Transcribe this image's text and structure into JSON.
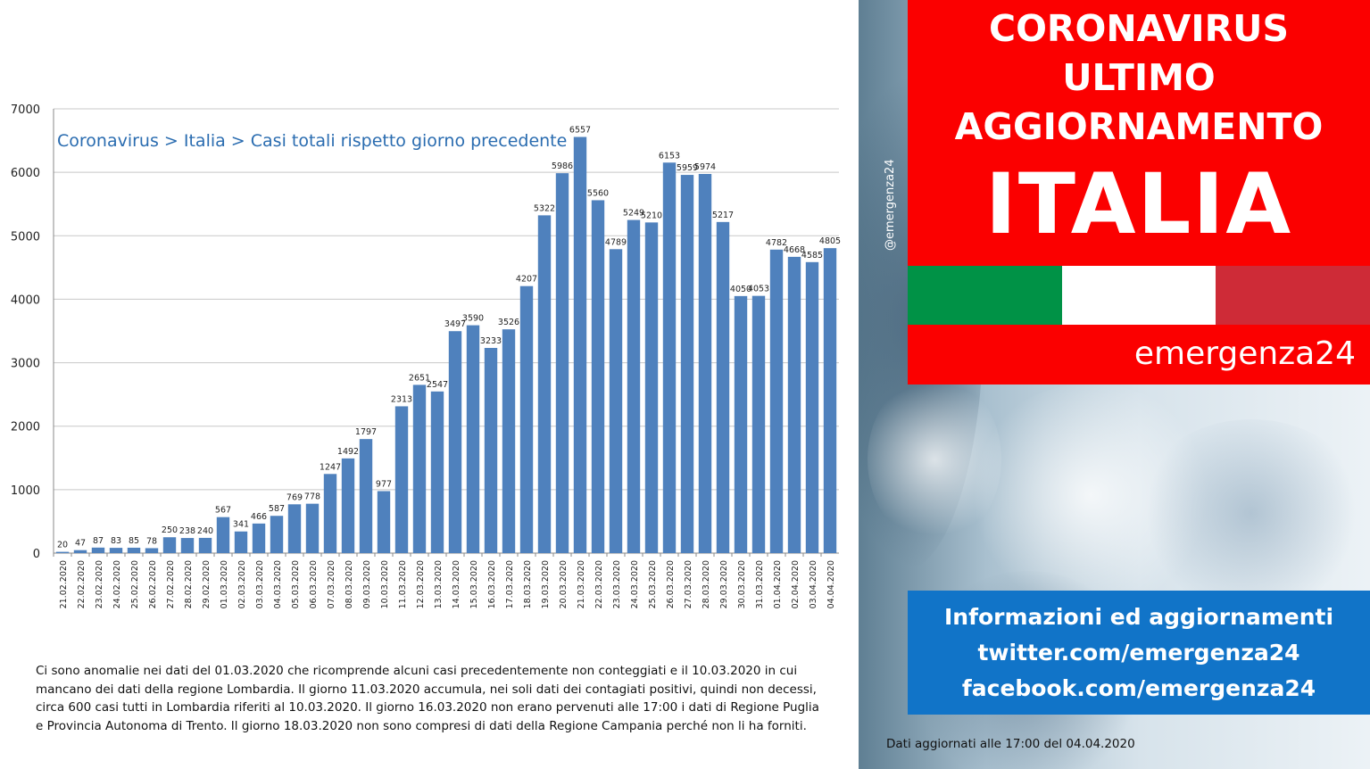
{
  "colors": {
    "bar": "#4f81bd",
    "title": "#2a6cb0",
    "grid": "#c8c8c8",
    "banner_red": "#fb0000",
    "flag_green": "#009246",
    "flag_white": "#ffffff",
    "flag_red": "#ce2b37",
    "info_blue": "#1174c8"
  },
  "chart_data": {
    "type": "bar",
    "title": "Coronavirus > Italia > Casi totali rispetto giorno precedente",
    "xlabel": "",
    "ylabel": "",
    "ylim": [
      0,
      7000
    ],
    "yticks": [
      "0",
      "1000",
      "2000",
      "3000",
      "4000",
      "5000",
      "6000",
      "7000"
    ],
    "grid": true,
    "legend": "none",
    "categories": [
      "21.02.2020",
      "22.02.2020",
      "23.02.2020",
      "24.02.2020",
      "25.02.2020",
      "26.02.2020",
      "27.02.2020",
      "28.02.2020",
      "29.02.2020",
      "01.03.2020",
      "02.03.2020",
      "03.03.2020",
      "04.03.2020",
      "05.03.2020",
      "06.03.2020",
      "07.03.2020",
      "08.03.2020",
      "09.03.2020",
      "10.03.2020",
      "11.03.2020",
      "12.03.2020",
      "13.03.2020",
      "14.03.2020",
      "15.03.2020",
      "16.03.2020",
      "17.03.2020",
      "18.03.2020",
      "19.03.2020",
      "20.03.2020",
      "21.03.2020",
      "22.03.2020",
      "23.03.2020",
      "24.03.2020",
      "25.03.2020",
      "26.03.2020",
      "27.03.2020",
      "28.03.2020",
      "29.03.2020",
      "30.03.2020",
      "31.03.2020",
      "01.04.2020",
      "02.04.2020",
      "03.04.2020",
      "04.04.2020"
    ],
    "values": [
      20,
      47,
      87,
      83,
      85,
      78,
      250,
      238,
      240,
      567,
      341,
      466,
      587,
      769,
      778,
      1247,
      1492,
      1797,
      977,
      2313,
      2651,
      2547,
      3497,
      3590,
      3233,
      3526,
      4207,
      5322,
      5986,
      6557,
      5560,
      4789,
      5249,
      5210,
      6153,
      5959,
      5974,
      5217,
      4050,
      4053,
      4782,
      4668,
      4585,
      4805
    ]
  },
  "note": "Ci sono anomalie nei dati del 01.03.2020 che ricomprende alcuni casi precedentemente  non conteggiati e il 10.03.2020 in cui mancano dei dati della regione Lombardia. Il giorno 11.03.2020  accumula, nei soli dati dei contagiati positivi, quindi non decessi, circa 600 casi tutti in Lombardia riferiti al  10.03.2020. Il giorno 16.03.2020 non erano pervenuti alle 17:00 i dati di Regione Puglia e Provincia Autonoma di Trento. Il giorno 18.03.2020 non sono compresi di dati della Regione  Campania perché non li ha forniti.",
  "banner": {
    "line1": "CORONAVIRUS",
    "line2": "ULTIMO",
    "line3": "AGGIORNAMENTO",
    "line4": "ITALIA"
  },
  "brand": "emergenza24",
  "handle": "@emergenza24",
  "info": {
    "line1": "Informazioni ed aggiornamenti",
    "line2": "twitter.com/emergenza24",
    "line3": "facebook.com/emergenza24"
  },
  "updated": "Dati aggiornati alle 17:00 del 04.04.2020"
}
